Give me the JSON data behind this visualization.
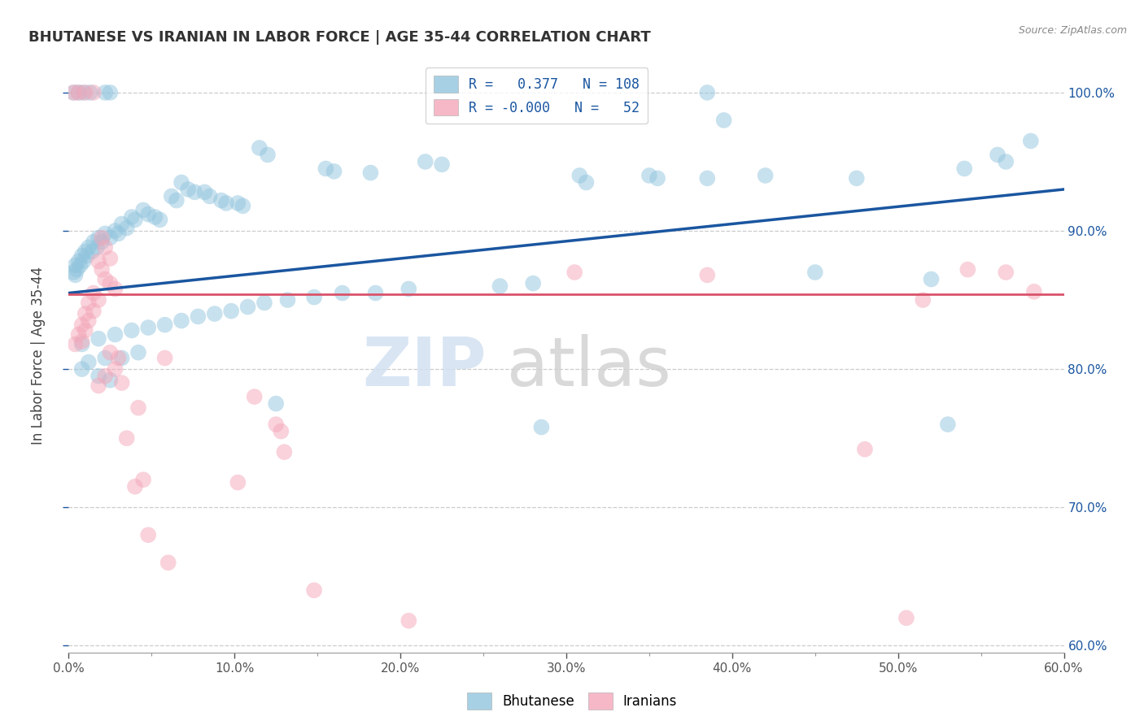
{
  "title": "BHUTANESE VS IRANIAN IN LABOR FORCE | AGE 35-44 CORRELATION CHART",
  "source": "Source: ZipAtlas.com",
  "ylabel_label": "In Labor Force | Age 35-44",
  "watermark_zip": "ZIP",
  "watermark_atlas": "atlas",
  "legend_blue_r": "0.377",
  "legend_blue_n": "108",
  "legend_pink_r": "-0.000",
  "legend_pink_n": "52",
  "blue_color": "#92c5de",
  "pink_color": "#f4a7b9",
  "blue_line_color": "#1a56a0",
  "pink_line_color": "#d9536a",
  "right_tick_color": "#1a56a0",
  "xlim": [
    0.0,
    0.6
  ],
  "ylim": [
    0.595,
    1.025
  ],
  "yticks": [
    0.6,
    0.7,
    0.8,
    0.9,
    1.0
  ],
  "xticks": [
    0.0,
    0.1,
    0.2,
    0.3,
    0.4,
    0.5,
    0.6
  ],
  "blue_scatter": [
    [
      0.003,
      1.0
    ],
    [
      0.006,
      1.0
    ],
    [
      0.009,
      1.0
    ],
    [
      0.013,
      1.0
    ],
    [
      0.022,
      1.0
    ],
    [
      0.025,
      1.0
    ],
    [
      0.385,
      1.0
    ],
    [
      0.395,
      0.98
    ],
    [
      0.115,
      0.96
    ],
    [
      0.12,
      0.955
    ],
    [
      0.215,
      0.95
    ],
    [
      0.225,
      0.948
    ],
    [
      0.155,
      0.945
    ],
    [
      0.16,
      0.943
    ],
    [
      0.182,
      0.942
    ],
    [
      0.35,
      0.94
    ],
    [
      0.355,
      0.938
    ],
    [
      0.308,
      0.94
    ],
    [
      0.312,
      0.935
    ],
    [
      0.42,
      0.94
    ],
    [
      0.475,
      0.938
    ],
    [
      0.068,
      0.935
    ],
    [
      0.072,
      0.93
    ],
    [
      0.076,
      0.928
    ],
    [
      0.082,
      0.928
    ],
    [
      0.085,
      0.925
    ],
    [
      0.062,
      0.925
    ],
    [
      0.065,
      0.922
    ],
    [
      0.092,
      0.922
    ],
    [
      0.095,
      0.92
    ],
    [
      0.102,
      0.92
    ],
    [
      0.105,
      0.918
    ],
    [
      0.56,
      0.955
    ],
    [
      0.565,
      0.95
    ],
    [
      0.58,
      0.965
    ],
    [
      0.045,
      0.915
    ],
    [
      0.048,
      0.912
    ],
    [
      0.052,
      0.91
    ],
    [
      0.055,
      0.908
    ],
    [
      0.038,
      0.91
    ],
    [
      0.04,
      0.908
    ],
    [
      0.032,
      0.905
    ],
    [
      0.035,
      0.902
    ],
    [
      0.028,
      0.9
    ],
    [
      0.03,
      0.898
    ],
    [
      0.022,
      0.898
    ],
    [
      0.025,
      0.895
    ],
    [
      0.018,
      0.895
    ],
    [
      0.02,
      0.892
    ],
    [
      0.015,
      0.892
    ],
    [
      0.017,
      0.888
    ],
    [
      0.012,
      0.888
    ],
    [
      0.014,
      0.885
    ],
    [
      0.01,
      0.885
    ],
    [
      0.011,
      0.882
    ],
    [
      0.008,
      0.882
    ],
    [
      0.009,
      0.878
    ],
    [
      0.006,
      0.878
    ],
    [
      0.007,
      0.875
    ],
    [
      0.004,
      0.875
    ],
    [
      0.005,
      0.872
    ],
    [
      0.003,
      0.87
    ],
    [
      0.004,
      0.868
    ],
    [
      0.54,
      0.945
    ],
    [
      0.385,
      0.938
    ],
    [
      0.52,
      0.865
    ],
    [
      0.45,
      0.87
    ],
    [
      0.28,
      0.862
    ],
    [
      0.26,
      0.86
    ],
    [
      0.205,
      0.858
    ],
    [
      0.185,
      0.855
    ],
    [
      0.165,
      0.855
    ],
    [
      0.148,
      0.852
    ],
    [
      0.132,
      0.85
    ],
    [
      0.118,
      0.848
    ],
    [
      0.108,
      0.845
    ],
    [
      0.098,
      0.842
    ],
    [
      0.088,
      0.84
    ],
    [
      0.078,
      0.838
    ],
    [
      0.068,
      0.835
    ],
    [
      0.058,
      0.832
    ],
    [
      0.048,
      0.83
    ],
    [
      0.038,
      0.828
    ],
    [
      0.028,
      0.825
    ],
    [
      0.018,
      0.822
    ],
    [
      0.008,
      0.818
    ],
    [
      0.042,
      0.812
    ],
    [
      0.032,
      0.808
    ],
    [
      0.022,
      0.808
    ],
    [
      0.012,
      0.805
    ],
    [
      0.008,
      0.8
    ],
    [
      0.018,
      0.795
    ],
    [
      0.025,
      0.792
    ],
    [
      0.125,
      0.775
    ],
    [
      0.53,
      0.76
    ],
    [
      0.285,
      0.758
    ]
  ],
  "pink_scatter": [
    [
      0.003,
      1.0
    ],
    [
      0.006,
      1.0
    ],
    [
      0.01,
      1.0
    ],
    [
      0.015,
      1.0
    ],
    [
      0.02,
      0.895
    ],
    [
      0.022,
      0.888
    ],
    [
      0.025,
      0.88
    ],
    [
      0.018,
      0.878
    ],
    [
      0.02,
      0.872
    ],
    [
      0.022,
      0.865
    ],
    [
      0.025,
      0.862
    ],
    [
      0.028,
      0.858
    ],
    [
      0.015,
      0.855
    ],
    [
      0.018,
      0.85
    ],
    [
      0.012,
      0.848
    ],
    [
      0.015,
      0.842
    ],
    [
      0.01,
      0.84
    ],
    [
      0.012,
      0.835
    ],
    [
      0.008,
      0.832
    ],
    [
      0.01,
      0.828
    ],
    [
      0.006,
      0.825
    ],
    [
      0.008,
      0.82
    ],
    [
      0.004,
      0.818
    ],
    [
      0.025,
      0.812
    ],
    [
      0.03,
      0.808
    ],
    [
      0.058,
      0.808
    ],
    [
      0.028,
      0.8
    ],
    [
      0.022,
      0.795
    ],
    [
      0.032,
      0.79
    ],
    [
      0.018,
      0.788
    ],
    [
      0.112,
      0.78
    ],
    [
      0.042,
      0.772
    ],
    [
      0.125,
      0.76
    ],
    [
      0.128,
      0.755
    ],
    [
      0.035,
      0.75
    ],
    [
      0.13,
      0.74
    ],
    [
      0.045,
      0.72
    ],
    [
      0.102,
      0.718
    ],
    [
      0.04,
      0.715
    ],
    [
      0.148,
      0.64
    ],
    [
      0.205,
      0.618
    ],
    [
      0.305,
      0.87
    ],
    [
      0.385,
      0.868
    ],
    [
      0.48,
      0.742
    ],
    [
      0.505,
      0.62
    ],
    [
      0.515,
      0.85
    ],
    [
      0.542,
      0.872
    ],
    [
      0.565,
      0.87
    ],
    [
      0.582,
      0.856
    ],
    [
      0.06,
      0.66
    ],
    [
      0.048,
      0.68
    ]
  ],
  "blue_trendline_x": [
    0.0,
    0.6
  ],
  "blue_trendline_y": [
    0.855,
    0.93
  ],
  "pink_trendline_x": [
    0.0,
    0.6
  ],
  "pink_trendline_y": [
    0.854,
    0.854
  ]
}
